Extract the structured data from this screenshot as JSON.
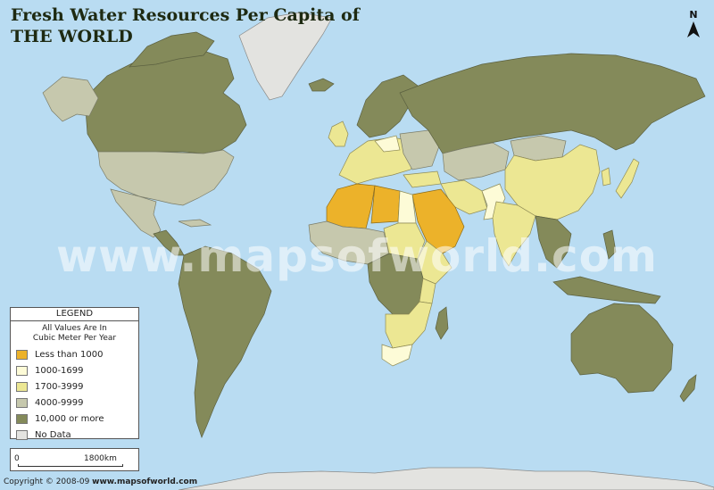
{
  "title": {
    "line1": "Fresh Water Resources Per Capita of",
    "line2": "THE WORLD"
  },
  "north": "N",
  "watermark": "www.mapsofworld.com",
  "legend": {
    "heading": "LEGEND",
    "note_line1": "All Values Are In",
    "note_line2": "Cubic Meter Per Year",
    "items": [
      {
        "label": "Less than 1000",
        "color": "#ecb22a"
      },
      {
        "label": "1000-1699",
        "color": "#fdfbd7"
      },
      {
        "label": "1700-3999",
        "color": "#ece793"
      },
      {
        "label": "4000-9999",
        "color": "#c6c8ad"
      },
      {
        "label": "10,000 or more",
        "color": "#848a5a"
      },
      {
        "label": "No Data",
        "color": "#e3e3e0"
      }
    ]
  },
  "scale": {
    "start": "0",
    "end": "1800km"
  },
  "copyright": {
    "prefix": "Copyright © 2008-09 ",
    "site": "www.mapsofworld.com"
  }
}
